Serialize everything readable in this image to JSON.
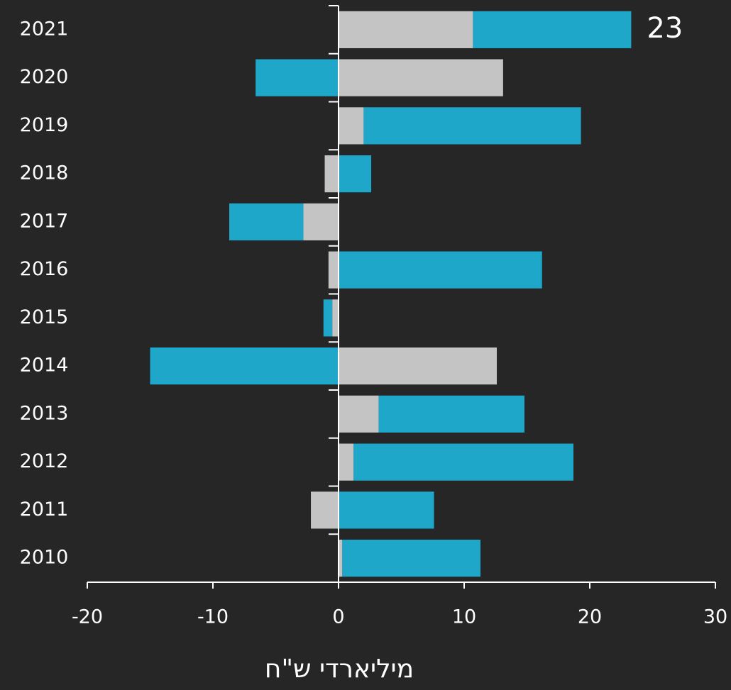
{
  "chart_data": {
    "type": "stacked-barh",
    "categories": [
      "2021",
      "2020",
      "2019",
      "2018",
      "2017",
      "2016",
      "2015",
      "2014",
      "2013",
      "2012",
      "2011",
      "2010"
    ],
    "series": [
      {
        "color": "#c4c4c4",
        "values": [
          10.7,
          13.1,
          2.0,
          -1.1,
          -2.8,
          -0.8,
          -0.5,
          12.6,
          3.2,
          1.2,
          -2.2,
          0.3
        ]
      },
      {
        "color": "#1fa7ca",
        "values": [
          12.6,
          -6.6,
          17.3,
          2.6,
          -5.9,
          16.2,
          -0.7,
          -15.0,
          11.6,
          17.5,
          7.6,
          11.0
        ]
      }
    ],
    "annotations": [
      {
        "text": "23",
        "category": "2021"
      }
    ],
    "xlabel": "מיליארדי ש\"ח",
    "xlim": [
      -20,
      30
    ],
    "xticks": [
      -20,
      -10,
      0,
      10,
      20,
      30
    ]
  }
}
